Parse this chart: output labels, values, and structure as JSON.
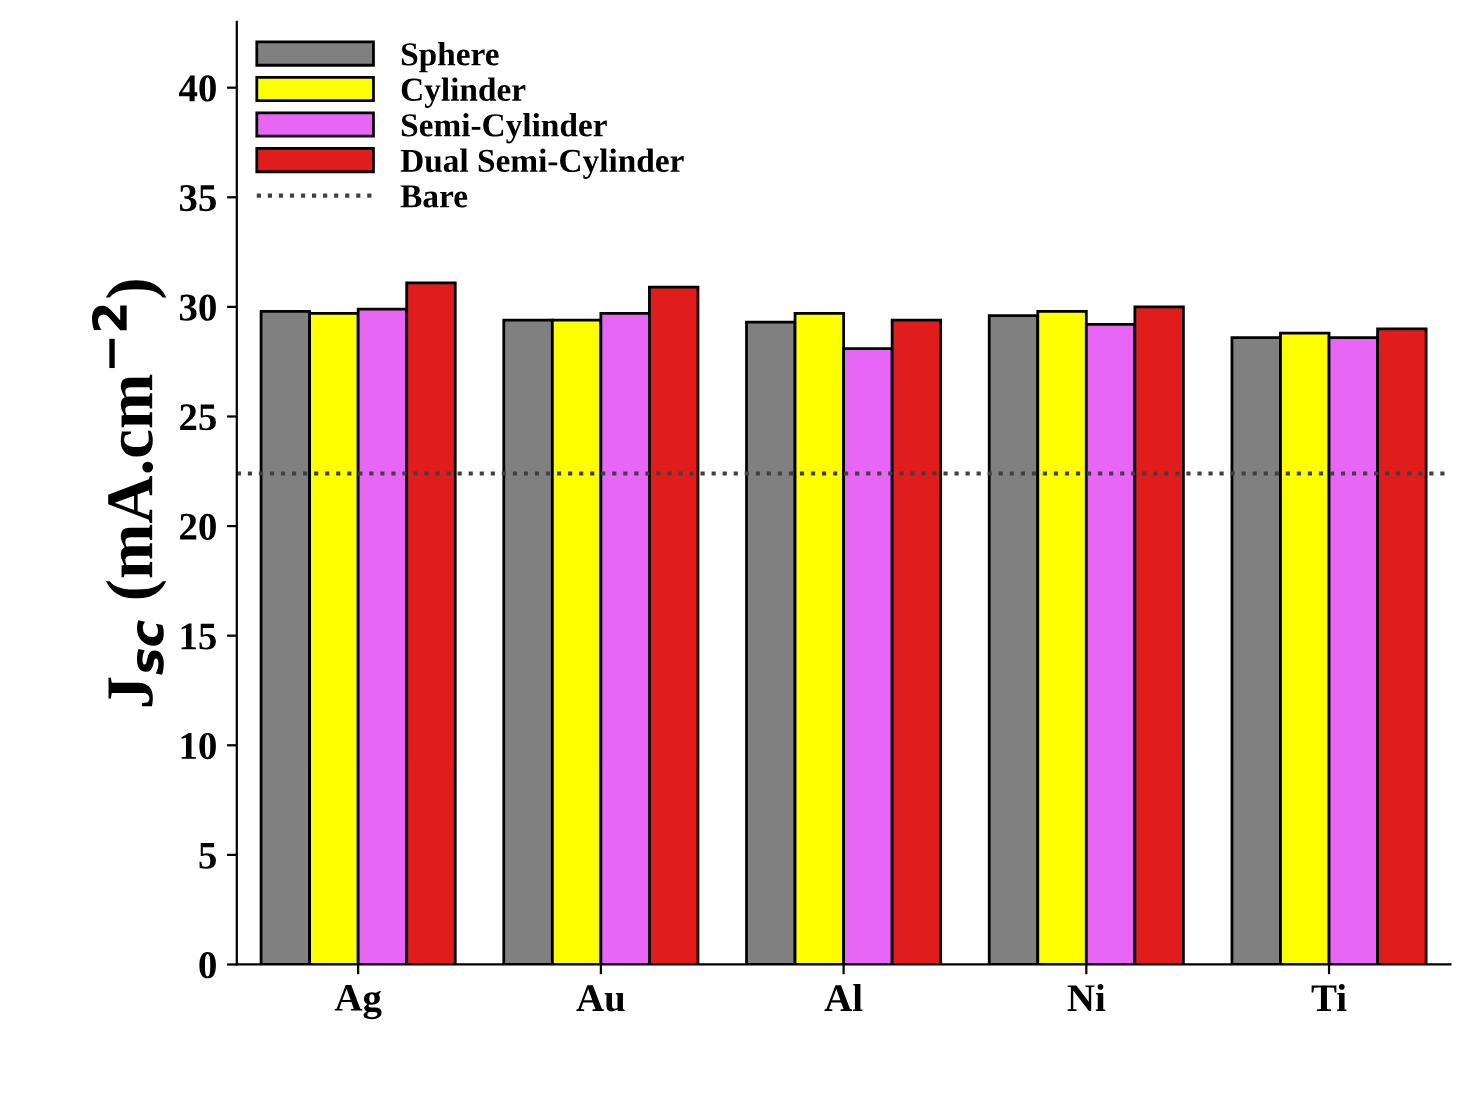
{
  "chart_data": {
    "type": "bar",
    "ylabel": "J$_{sc}$ (mA.cm$^{−2}$)",
    "categories": [
      "Ag",
      "Au",
      "Al",
      "Ni",
      "Ti"
    ],
    "series": [
      {
        "name": "Sphere",
        "color": "#808080",
        "values": [
          29.8,
          29.4,
          29.3,
          29.6,
          28.6
        ]
      },
      {
        "name": "Cylinder",
        "color": "#ffff00",
        "values": [
          29.7,
          29.4,
          29.7,
          29.8,
          28.8
        ]
      },
      {
        "name": "Semi-Cylinder",
        "color": "#e866f5",
        "values": [
          29.9,
          29.7,
          28.1,
          29.2,
          28.6
        ]
      },
      {
        "name": "Dual Semi-Cylinder",
        "color": "#e01c1c",
        "values": [
          31.1,
          30.9,
          29.4,
          30.0,
          29.0
        ]
      }
    ],
    "ref_lines": [
      {
        "axis": "y",
        "value": 22.4,
        "label": "Bare",
        "color": "#404040",
        "line_style": "dotted"
      }
    ],
    "ylim": [
      0,
      43
    ],
    "yticks": [
      0,
      5,
      10,
      15,
      20,
      25,
      30,
      35,
      40
    ],
    "grid": false,
    "legend": "top left"
  }
}
